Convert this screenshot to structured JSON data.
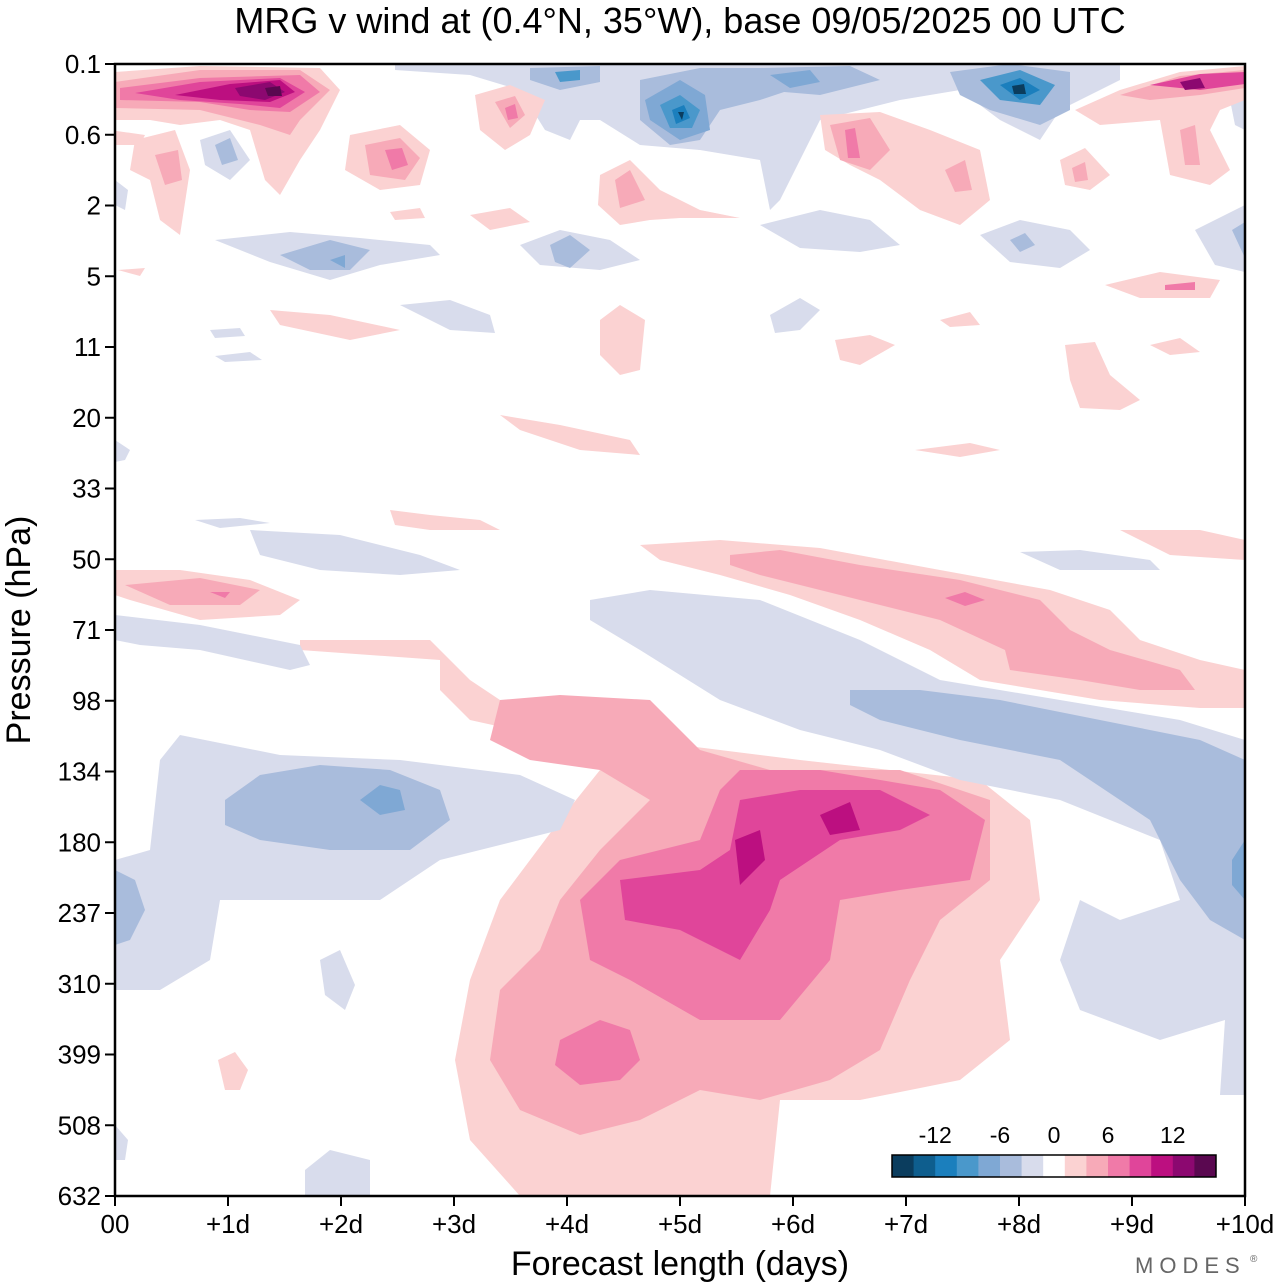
{
  "chart_data": {
    "type": "contour",
    "title": "MRG v wind at (0.4°N, 35°W),  base 09/05/2025  00 UTC",
    "xlabel": "Forecast length (days)",
    "ylabel": "Pressure (hPa)",
    "x_ticks": [
      "00",
      "+1d",
      "+2d",
      "+3d",
      "+4d",
      "+5d",
      "+6d",
      "+7d",
      "+8d",
      "+9d",
      "+10d"
    ],
    "y_ticks": [
      "0.1",
      "0.6",
      "2",
      "5",
      "11",
      "20",
      "33",
      "50",
      "71",
      "98",
      "134",
      "180",
      "237",
      "310",
      "399",
      "508",
      "632"
    ],
    "xlim": [
      0,
      10
    ],
    "ylim": [
      "0.1",
      "632"
    ],
    "colorbar": {
      "ticks": [
        "-12",
        "-6",
        "0",
        "6",
        "12"
      ],
      "colors": [
        "#0b3d5e",
        "#0e5e8e",
        "#1b7fbd",
        "#4a98cb",
        "#7fa8d4",
        "#a9bcdc",
        "#d8dcec",
        "#ffffff",
        "#fbd2d2",
        "#f7aab8",
        "#f07aa8",
        "#e0459a",
        "#bc0f80",
        "#8c0870",
        "#5a0850"
      ]
    },
    "features": [
      {
        "sign": "positive",
        "level": 4,
        "x": 5.9,
        "y": "~200",
        "note": "max ~+12 m/s"
      },
      {
        "sign": "positive",
        "level": 3,
        "x": 3.8,
        "y": "~399"
      },
      {
        "sign": "negative",
        "level": 2,
        "x": 2.0,
        "y": "~160"
      },
      {
        "sign": "positive",
        "level": 5,
        "x": 1.5,
        "y": "~0.3"
      },
      {
        "sign": "negative",
        "level": 5,
        "x": 8.0,
        "y": "~0.3"
      },
      {
        "sign": "negative",
        "level": 4,
        "x": 5.0,
        "y": "~0.4"
      },
      {
        "sign": "positive",
        "level": 2,
        "x": 8.3,
        "y": "~71"
      }
    ]
  },
  "brand": "MODES",
  "brand_mark": "®"
}
